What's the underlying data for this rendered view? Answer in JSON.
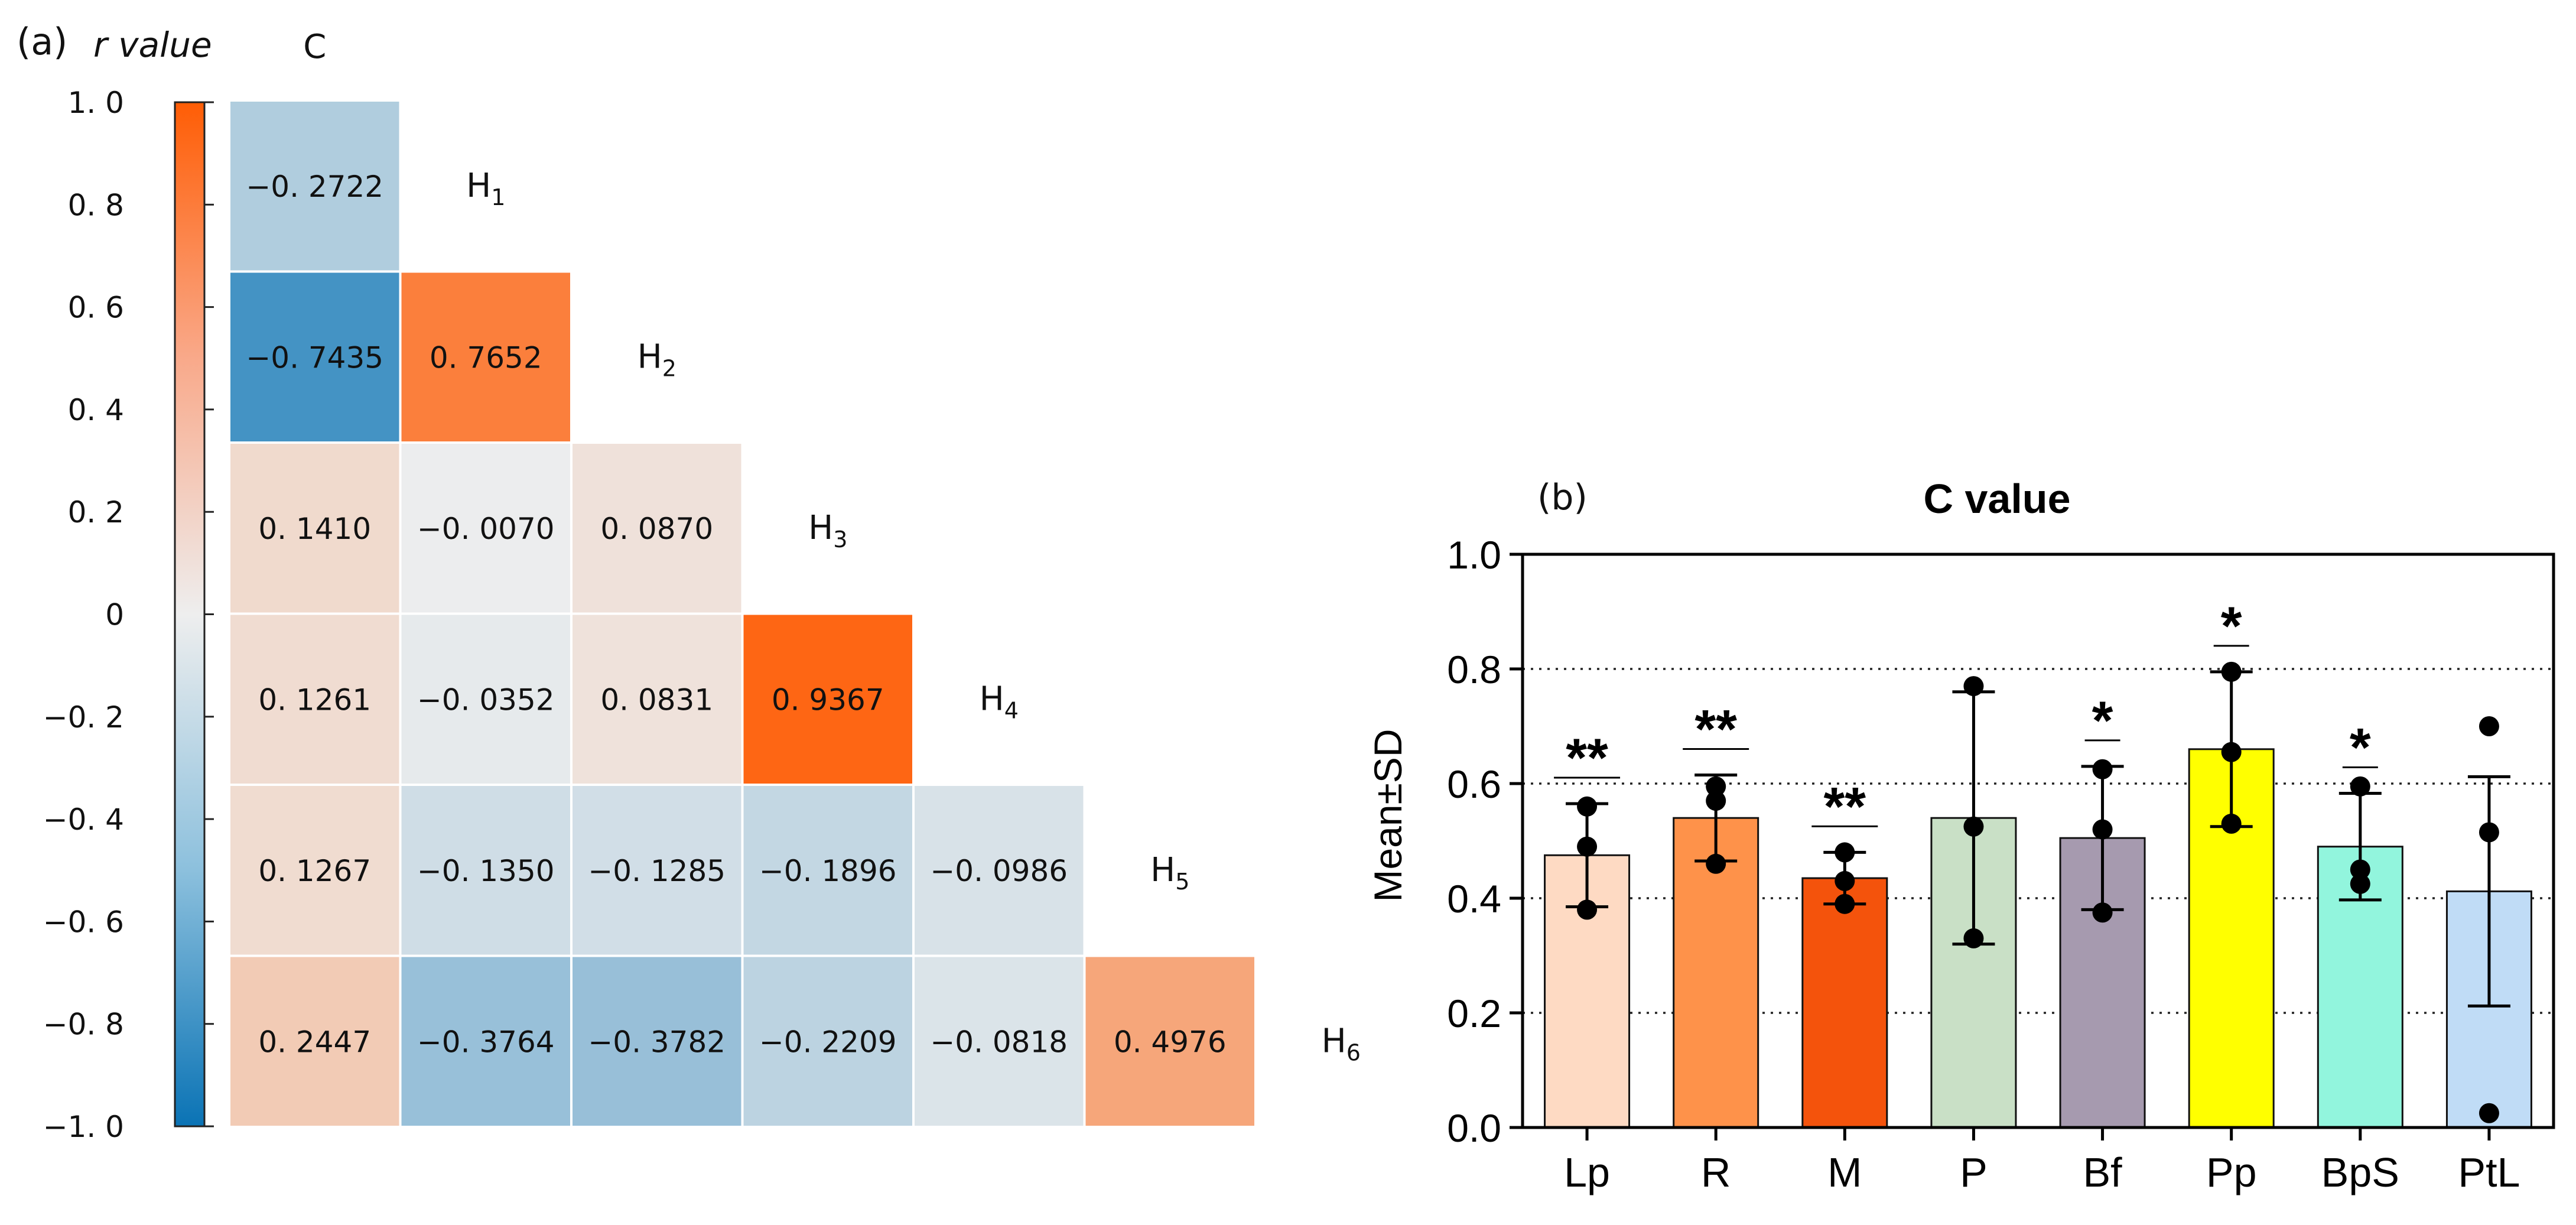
{
  "panel_a": {
    "panel_label": "(a)",
    "colorbar_title": "r value",
    "colorbar_ticks": [
      "1. 0",
      "0. 8",
      "0. 6",
      "0. 4",
      "0. 2",
      "0",
      "−0. 2",
      "−0. 4",
      "−0. 6",
      "−0. 8",
      "−1. 0"
    ],
    "colors": {
      "negative": "#0a73b5",
      "neutral": "#eeeeee",
      "positive": "#ff5d05"
    }
  },
  "panel_b": {
    "panel_label": "(b)",
    "colors": {
      "bars": [
        "#fedac3",
        "#fe924a",
        "#f4530c",
        "#c9e0c6",
        "#a69aaf",
        "#ffff00",
        "#92f5dd",
        "#c0dcf6"
      ]
    }
  },
  "chart_data": [
    {
      "type": "heatmap",
      "title": "",
      "variables": [
        "C",
        "H",
        "H",
        "H",
        "H",
        "H",
        "H"
      ],
      "variable_subscripts": [
        "",
        "1",
        "2",
        "3",
        "4",
        "5",
        "6"
      ],
      "row_variables": [
        "H1",
        "H2",
        "H3",
        "H4",
        "H5",
        "H6"
      ],
      "col_variables": [
        "C",
        "H1",
        "H2",
        "H3",
        "H4",
        "H5"
      ],
      "values": [
        [
          -0.2722
        ],
        [
          -0.7435,
          0.7652
        ],
        [
          0.141,
          -0.007,
          0.087
        ],
        [
          0.1261,
          -0.0352,
          0.0831,
          0.9367
        ],
        [
          0.1267,
          -0.135,
          -0.1285,
          -0.1896,
          -0.0986
        ],
        [
          0.2447,
          -0.3764,
          -0.3782,
          -0.2209,
          -0.0818,
          0.4976
        ]
      ],
      "value_labels": [
        [
          "−0. 2722"
        ],
        [
          "−0. 7435",
          "0. 7652"
        ],
        [
          "0. 1410",
          "−0. 0070",
          "0. 0870"
        ],
        [
          "0. 1261",
          "−0. 0352",
          "0. 0831",
          "0. 9367"
        ],
        [
          "0. 1267",
          "−0. 1350",
          "−0. 1285",
          "−0. 1896",
          "−0. 0986"
        ],
        [
          "0. 2447",
          "−0. 3764",
          "−0. 3782",
          "−0. 2209",
          "−0. 0818",
          "0. 4976"
        ]
      ],
      "color_range": [
        -1.0,
        1.0
      ],
      "colorbar_label": "r value"
    },
    {
      "type": "bar",
      "title": "C value",
      "xlabel": "",
      "ylabel": "Mean±SD",
      "ylim": [
        0.0,
        1.0
      ],
      "yticks": [
        0.0,
        0.2,
        0.4,
        0.6,
        0.8,
        1.0
      ],
      "ytick_labels": [
        "0.0",
        "0.2",
        "0.4",
        "0.6",
        "0.8",
        "1.0"
      ],
      "grid": "horizontal dotted at 0.2, 0.4, 0.6, 0.8",
      "categories": [
        "Lp",
        "R",
        "M",
        "P",
        "Bf",
        "Pp",
        "BpS",
        "PtL"
      ],
      "values": [
        0.475,
        0.54,
        0.435,
        0.54,
        0.505,
        0.66,
        0.49,
        0.412
      ],
      "sd": [
        0.09,
        0.075,
        0.045,
        0.22,
        0.125,
        0.135,
        0.093,
        0.2
      ],
      "points": [
        [
          0.38,
          0.49,
          0.56
        ],
        [
          0.46,
          0.57,
          0.595
        ],
        [
          0.39,
          0.43,
          0.48
        ],
        [
          0.33,
          0.525,
          0.77
        ],
        [
          0.375,
          0.52,
          0.625
        ],
        [
          0.53,
          0.655,
          0.795
        ],
        [
          0.425,
          0.45,
          0.595
        ],
        [
          0.025,
          0.515,
          0.7
        ]
      ],
      "significance": [
        "**",
        "**",
        "**",
        "",
        "*",
        "*",
        "*",
        ""
      ]
    }
  ]
}
